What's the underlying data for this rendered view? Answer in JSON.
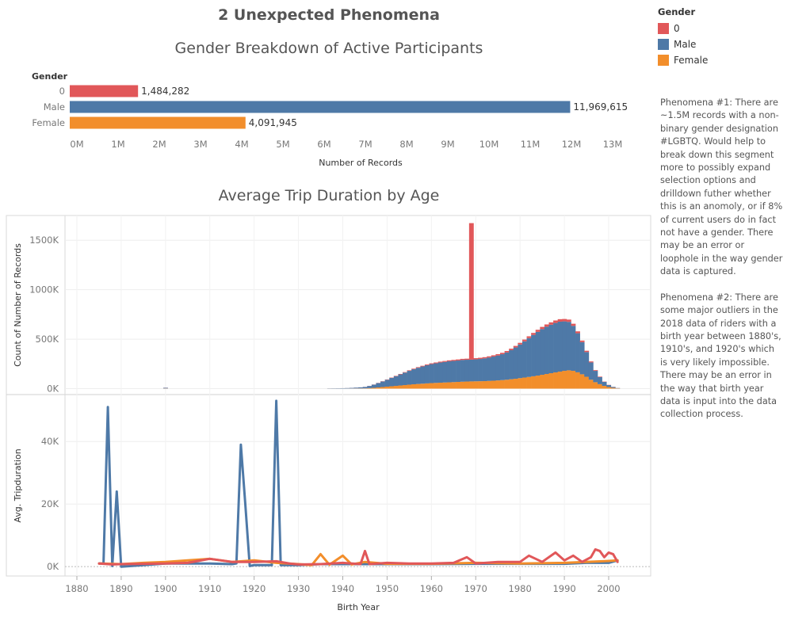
{
  "dashboard": {
    "title": "2 Unexpected Phenomena"
  },
  "legend": {
    "title": "Gender",
    "items": [
      {
        "label": "0",
        "color": "#e15759"
      },
      {
        "label": "Male",
        "color": "#4e79a7"
      },
      {
        "label": "Female",
        "color": "#f28e2b"
      }
    ]
  },
  "notes": {
    "phenomena1": "Phenomena #1:  There are ~1.5M records with a non-binary gender designation #LGBTQ. Would help to break down this segment more to possibly expand selection options and drilldown futher whether this is an anomoly, or if 8% of current users do in fact not have a gender. There may be an error or loophole in the way gender data is captured.",
    "phenomena2": "Phenomena #2: There are some major outliers in the 2018 data of riders with a birth year between 1880's, 1910's, and 1920's which is very likely impossible. There may be an error in the way that birth year data is input into the data collection process."
  },
  "chart_data": [
    {
      "type": "bar",
      "orientation": "horizontal",
      "title": "Gender Breakdown of Active Participants",
      "category_header": "Gender",
      "xlabel": "Number of Records",
      "categories": [
        "0",
        "Male",
        "Female"
      ],
      "values": [
        1484282,
        11969615,
        4091945
      ],
      "value_labels": [
        "1,484,282",
        "11,969,615",
        "4,091,945"
      ],
      "colors": [
        "#e15759",
        "#4e79a7",
        "#f28e2b"
      ],
      "xlim": [
        0,
        13500000
      ],
      "xticks": [
        0,
        1000000,
        2000000,
        3000000,
        4000000,
        5000000,
        6000000,
        7000000,
        8000000,
        9000000,
        10000000,
        11000000,
        12000000,
        13000000
      ],
      "xtick_labels": [
        "0M",
        "1M",
        "2M",
        "3M",
        "4M",
        "5M",
        "6M",
        "7M",
        "8M",
        "9M",
        "10M",
        "11M",
        "12M",
        "13M"
      ]
    },
    {
      "type": "bar",
      "stacked": true,
      "title": "Average Trip Duration by Age",
      "ylabel": "Count of Number of Records",
      "xlim": [
        1878,
        2010
      ],
      "ylim": [
        -60000,
        1750000
      ],
      "yticks": [
        0,
        500000,
        1000000,
        1500000
      ],
      "ytick_labels": [
        "0K",
        "500K",
        "1000K",
        "1500K"
      ],
      "grid": true,
      "x": [
        1900,
        1937,
        1938,
        1939,
        1940,
        1941,
        1942,
        1943,
        1944,
        1945,
        1946,
        1947,
        1948,
        1949,
        1950,
        1951,
        1952,
        1953,
        1954,
        1955,
        1956,
        1957,
        1958,
        1959,
        1960,
        1961,
        1962,
        1963,
        1964,
        1965,
        1966,
        1967,
        1968,
        1969,
        1970,
        1971,
        1972,
        1973,
        1974,
        1975,
        1976,
        1977,
        1978,
        1979,
        1980,
        1981,
        1982,
        1983,
        1984,
        1985,
        1986,
        1987,
        1988,
        1989,
        1990,
        1991,
        1992,
        1993,
        1994,
        1995,
        1996,
        1997,
        1998,
        1999,
        2000,
        2001,
        2002
      ],
      "series": [
        {
          "name": "Female",
          "values": [
            2000,
            500,
            600,
            700,
            900,
            1200,
            1500,
            2000,
            2500,
            3000,
            5000,
            8000,
            12000,
            16000,
            20000,
            24000,
            28000,
            32000,
            36000,
            40000,
            44000,
            47000,
            50000,
            53000,
            56000,
            58000,
            60000,
            62000,
            64000,
            66000,
            68000,
            70000,
            72000,
            73000,
            74000,
            75000,
            76000,
            78000,
            80000,
            83000,
            86000,
            90000,
            95000,
            100000,
            106000,
            112000,
            118000,
            125000,
            132000,
            140000,
            148000,
            156000,
            164000,
            172000,
            180000,
            185000,
            180000,
            165000,
            145000,
            120000,
            90000,
            65000,
            45000,
            28000,
            16000,
            8000,
            3000
          ]
        },
        {
          "name": "Male",
          "values": [
            6000,
            2000,
            2500,
            3000,
            3500,
            4500,
            6000,
            8000,
            10000,
            14000,
            22000,
            32000,
            44000,
            56000,
            70000,
            84000,
            98000,
            112000,
            126000,
            140000,
            152000,
            164000,
            174000,
            184000,
            192000,
            198000,
            204000,
            208000,
            212000,
            214000,
            216000,
            220000,
            220000,
            220000,
            222000,
            225000,
            230000,
            236000,
            244000,
            252000,
            262000,
            276000,
            294000,
            316000,
            340000,
            366000,
            392000,
            418000,
            442000,
            462000,
            478000,
            490000,
            500000,
            505000,
            500000,
            490000,
            455000,
            395000,
            325000,
            250000,
            175000,
            115000,
            72000,
            40000,
            20000,
            9000,
            3000
          ]
        },
        {
          "name": "0",
          "values": [
            1000,
            200,
            200,
            200,
            300,
            300,
            400,
            500,
            600,
            700,
            1000,
            1500,
            2000,
            2500,
            3000,
            3500,
            4000,
            4500,
            5000,
            5500,
            6000,
            6500,
            7000,
            7500,
            8000,
            8500,
            9000,
            9500,
            10000,
            10500,
            11000,
            11000,
            11000,
            1380000,
            12000,
            12000,
            12000,
            12500,
            13000,
            13500,
            14000,
            14500,
            15000,
            16000,
            17000,
            18000,
            19000,
            20000,
            21000,
            22000,
            23000,
            24000,
            25000,
            25000,
            24000,
            23000,
            21000,
            19000,
            16000,
            13000,
            10000,
            7000,
            5000,
            3000,
            2000,
            1000,
            500
          ]
        }
      ]
    },
    {
      "type": "line",
      "ylabel": "Avg. Tripduration",
      "xlabel": "Birth Year",
      "xlim": [
        1878,
        2010
      ],
      "ylim": [
        -3000,
        55000
      ],
      "yticks": [
        0,
        20000,
        40000
      ],
      "ytick_labels": [
        "0K",
        "20K",
        "40K"
      ],
      "xticks": [
        1880,
        1890,
        1900,
        1910,
        1920,
        1930,
        1940,
        1950,
        1960,
        1970,
        1980,
        1990,
        2000
      ],
      "xtick_labels": [
        "1880",
        "1890",
        "1900",
        "1910",
        "1920",
        "1930",
        "1940",
        "1950",
        "1960",
        "1970",
        "1980",
        "1990",
        "2000"
      ],
      "grid": true,
      "series": [
        {
          "name": "Male",
          "x": [
            1885,
            1886,
            1887,
            1888,
            1889,
            1890,
            1895,
            1900,
            1905,
            1910,
            1915,
            1916,
            1917,
            1918,
            1919,
            1920,
            1924,
            1925,
            1926,
            1930,
            1935,
            1940,
            1950,
            1960,
            1970,
            1980,
            1990,
            1995,
            2000,
            2002
          ],
          "y": [
            1000,
            1000,
            51000,
            200,
            24000,
            0,
            500,
            1000,
            1000,
            1000,
            800,
            1000,
            39000,
            20000,
            200,
            500,
            500,
            53000,
            500,
            500,
            800,
            800,
            800,
            800,
            900,
            900,
            900,
            1200,
            1200,
            2000
          ]
        },
        {
          "name": "Female",
          "x": [
            1885,
            1890,
            1895,
            1900,
            1905,
            1910,
            1915,
            1920,
            1925,
            1930,
            1933,
            1935,
            1937,
            1940,
            1942,
            1945,
            1950,
            1960,
            1970,
            1980,
            1990,
            2000,
            2002
          ],
          "y": [
            1000,
            800,
            1200,
            1500,
            2000,
            2500,
            1500,
            2000,
            1200,
            800,
            500,
            4000,
            600,
            3500,
            700,
            1500,
            900,
            900,
            1200,
            1000,
            1200,
            1800,
            2000
          ]
        },
        {
          "name": "0",
          "x": [
            1885,
            1888,
            1890,
            1895,
            1900,
            1905,
            1910,
            1915,
            1920,
            1925,
            1928,
            1930,
            1935,
            1940,
            1944,
            1945,
            1946,
            1950,
            1955,
            1960,
            1965,
            1968,
            1970,
            1975,
            1980,
            1982,
            1985,
            1988,
            1990,
            1992,
            1994,
            1996,
            1997,
            1998,
            1999,
            2000,
            2001,
            2002
          ],
          "y": [
            1000,
            700,
            800,
            900,
            1000,
            1200,
            2500,
            1500,
            1500,
            1700,
            1000,
            700,
            800,
            1200,
            800,
            5000,
            800,
            1200,
            1000,
            1000,
            1200,
            3000,
            1000,
            1500,
            1500,
            3500,
            1500,
            4500,
            2000,
            3500,
            1500,
            3000,
            5500,
            5000,
            3000,
            4500,
            4000,
            1500
          ]
        }
      ]
    }
  ]
}
